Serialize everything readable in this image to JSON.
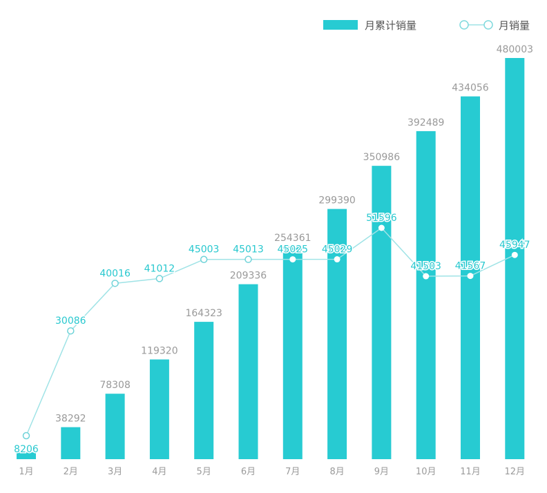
{
  "chart_data": {
    "type": "bar",
    "categories": [
      "1月",
      "2月",
      "3月",
      "4月",
      "5月",
      "6月",
      "7月",
      "8月",
      "9月",
      "10月",
      "11月",
      "12月"
    ],
    "series": [
      {
        "name": "月累计销量",
        "type": "bar",
        "values": [
          8206,
          38292,
          78308,
          119320,
          164323,
          209336,
          254361,
          299390,
          350986,
          392489,
          434056,
          480003
        ]
      },
      {
        "name": "月销量",
        "type": "line",
        "values": [
          8206,
          30086,
          40016,
          41012,
          45003,
          45013,
          45025,
          45029,
          51596,
          41503,
          41567,
          45947
        ]
      }
    ],
    "legend": "top-right",
    "grid": false,
    "colors": {
      "bar": "#27cbd2",
      "line": "#9fe3e6",
      "line_label": "#28c8cf",
      "bar_label": "#999999",
      "axis_label": "#9a9a9a"
    }
  }
}
